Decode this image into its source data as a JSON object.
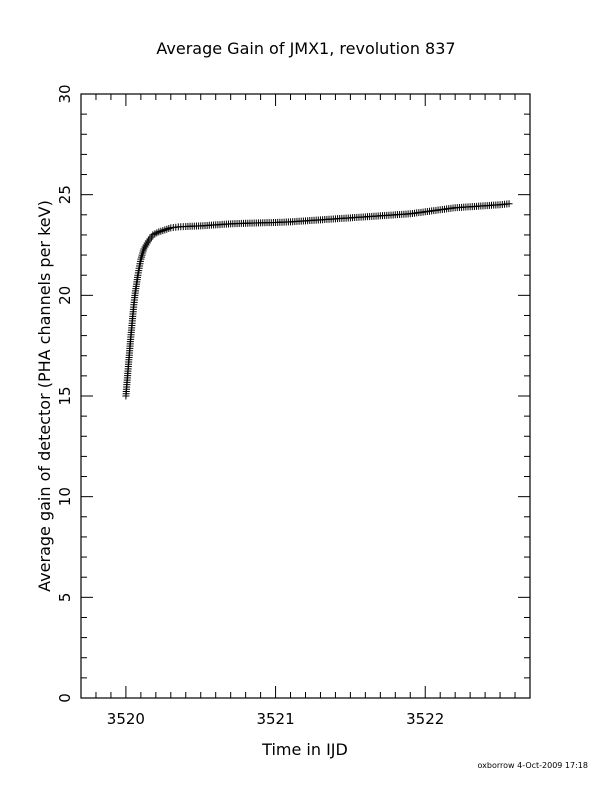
{
  "chart_data": {
    "type": "scatter",
    "title": "Average Gain of JMX1, revolution 837",
    "xlabel": "Time in IJD",
    "ylabel": "Average gain of detector (PHA channels per keV)",
    "xlim": [
      3519.7,
      3522.7
    ],
    "ylim": [
      0,
      30
    ],
    "xticks": [
      3520,
      3521,
      3522
    ],
    "yticks": [
      0,
      5,
      10,
      15,
      20,
      25,
      30
    ],
    "grid": false,
    "marker": "plus",
    "series": [
      {
        "x": [
          3520.0,
          3520.01,
          3520.02,
          3520.03,
          3520.04,
          3520.05,
          3520.06,
          3520.08,
          3520.1,
          3520.12,
          3520.15,
          3520.18,
          3520.22,
          3520.26,
          3520.3,
          3520.35,
          3520.4,
          3520.5,
          3520.6,
          3520.7,
          3520.8,
          3520.9,
          3521.0,
          3521.1,
          3521.2,
          3521.3,
          3521.4,
          3521.5,
          3521.6,
          3521.7,
          3521.8,
          3521.9,
          3522.0,
          3522.1,
          3522.2,
          3522.3,
          3522.4,
          3522.5,
          3522.56
        ],
        "y": [
          15.0,
          15.9,
          16.8,
          17.7,
          18.5,
          19.3,
          20.0,
          21.0,
          21.8,
          22.3,
          22.7,
          23.0,
          23.15,
          23.25,
          23.35,
          23.4,
          23.42,
          23.45,
          23.5,
          23.55,
          23.58,
          23.6,
          23.62,
          23.65,
          23.7,
          23.75,
          23.8,
          23.85,
          23.9,
          23.95,
          24.0,
          24.05,
          24.15,
          24.25,
          24.35,
          24.4,
          24.45,
          24.5,
          24.55
        ]
      }
    ]
  },
  "footer": "oxborrow  4-Oct-2009 17:18"
}
